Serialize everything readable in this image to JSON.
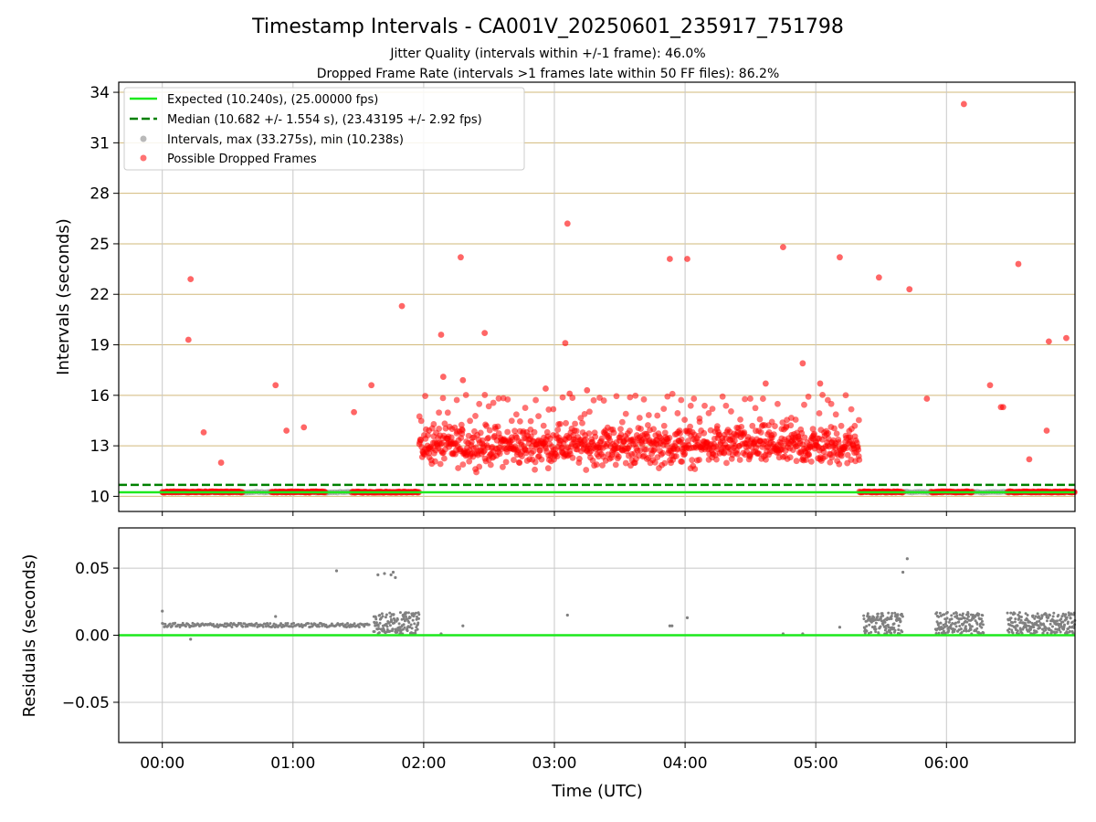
{
  "figure": {
    "title": "Timestamp Intervals - CA001V_20250601_235917_751798",
    "subtitle_1": "Jitter Quality (intervals within +/-1 frame): 46.0%",
    "subtitle_2": "Dropped Frame Rate (intervals >1 frames late within 50 FF files): 86.2%"
  },
  "colors": {
    "expected": "#1de91d",
    "median": "#008000",
    "intervals": "#808080",
    "dropped": "#ff0000",
    "hgrid_top": "#d2b97a",
    "grid": "#c8c8c8"
  },
  "chart_data": [
    {
      "type": "scatter",
      "panel": "intervals",
      "ylabel": "Intervals (seconds)",
      "ylim": [
        9.1,
        34.6
      ],
      "yticks": [
        10,
        13,
        16,
        19,
        22,
        25,
        28,
        31,
        34
      ],
      "ytick_labels": [
        "10",
        "13",
        "16",
        "19",
        "22",
        "25",
        "28",
        "31",
        "34"
      ],
      "xlim": [
        "-00:20",
        "06:59"
      ],
      "xticks": [
        "00:00",
        "01:00",
        "02:00",
        "03:00",
        "04:00",
        "05:00",
        "06:00"
      ],
      "grid": true,
      "legend_position": "upper-left",
      "legend": [
        "Expected (10.240s), (25.00000 fps)",
        "Median (10.682 +/- 1.554 s), (23.43195 +/- 2.92 fps)",
        "Intervals, max (33.275s), min (10.238s)",
        "Possible Dropped Frames"
      ],
      "expected_interval": 10.24,
      "median_interval": 10.682,
      "intervals_baseline": [
        {
          "x_from": "00:00",
          "x_to": "01:35",
          "y": 10.25
        },
        {
          "x_from": "05:25",
          "x_to": "06:59",
          "y": 10.25
        }
      ],
      "dropped_clusters": [
        {
          "x_from": "00:00",
          "x_to": "00:37",
          "y": 10.26
        },
        {
          "x_from": "00:50",
          "x_to": "01:15",
          "y": 10.26
        },
        {
          "x_from": "01:27",
          "x_to": "01:58",
          "y": 10.25
        },
        {
          "x_from": "01:58",
          "x_to": "05:20",
          "y_center": 13.0,
          "y_spread": 0.55
        },
        {
          "x_from": "05:20",
          "x_to": "05:40",
          "y": 10.26
        },
        {
          "x_from": "05:53",
          "x_to": "06:12",
          "y": 10.26
        },
        {
          "x_from": "06:28",
          "x_to": "06:59",
          "y": 10.26
        }
      ],
      "dropped_outliers": [
        {
          "x": "00:12",
          "y": 19.3
        },
        {
          "x": "00:13",
          "y": 22.9
        },
        {
          "x": "00:19",
          "y": 13.8
        },
        {
          "x": "00:27",
          "y": 12.0
        },
        {
          "x": "00:52",
          "y": 16.6
        },
        {
          "x": "00:57",
          "y": 13.9
        },
        {
          "x": "01:05",
          "y": 14.1
        },
        {
          "x": "01:28",
          "y": 15.0
        },
        {
          "x": "01:36",
          "y": 16.6
        },
        {
          "x": "01:50",
          "y": 21.3
        },
        {
          "x": "02:08",
          "y": 19.6
        },
        {
          "x": "02:09",
          "y": 17.1
        },
        {
          "x": "02:17",
          "y": 24.2
        },
        {
          "x": "02:18",
          "y": 16.9
        },
        {
          "x": "02:28",
          "y": 19.7
        },
        {
          "x": "02:56",
          "y": 16.4
        },
        {
          "x": "03:05",
          "y": 19.1
        },
        {
          "x": "03:06",
          "y": 26.2
        },
        {
          "x": "03:07",
          "y": 16.1
        },
        {
          "x": "03:15",
          "y": 16.3
        },
        {
          "x": "03:53",
          "y": 24.1
        },
        {
          "x": "04:01",
          "y": 24.1
        },
        {
          "x": "04:37",
          "y": 16.7
        },
        {
          "x": "04:45",
          "y": 24.8
        },
        {
          "x": "04:54",
          "y": 17.9
        },
        {
          "x": "05:02",
          "y": 16.7
        },
        {
          "x": "05:11",
          "y": 24.2
        },
        {
          "x": "05:29",
          "y": 23.0
        },
        {
          "x": "05:43",
          "y": 22.3
        },
        {
          "x": "05:51",
          "y": 15.8
        },
        {
          "x": "06:08",
          "y": 33.3
        },
        {
          "x": "06:20",
          "y": 16.6
        },
        {
          "x": "06:25",
          "y": 15.3
        },
        {
          "x": "06:26",
          "y": 15.3
        },
        {
          "x": "06:33",
          "y": 23.8
        },
        {
          "x": "06:38",
          "y": 12.2
        },
        {
          "x": "06:46",
          "y": 13.9
        },
        {
          "x": "06:47",
          "y": 19.2
        },
        {
          "x": "06:55",
          "y": 19.4
        }
      ]
    },
    {
      "type": "scatter",
      "panel": "residuals",
      "xlabel": "Time (UTC)",
      "ylabel": "Residuals (seconds)",
      "ylim": [
        -0.08,
        0.08
      ],
      "yticks": [
        -0.05,
        0.0,
        0.05
      ],
      "ytick_labels": [
        "−0.05",
        "0.00",
        "0.05"
      ],
      "xlim": [
        "-00:20",
        "06:59"
      ],
      "xticks": [
        "00:00",
        "01:00",
        "02:00",
        "03:00",
        "04:00",
        "05:00",
        "06:00"
      ],
      "xtick_labels": [
        "00:00",
        "01:00",
        "02:00",
        "03:00",
        "04:00",
        "05:00",
        "06:00"
      ],
      "grid": true,
      "zero_line": 0.0,
      "residual_clusters": [
        {
          "x_from": "00:00",
          "x_to": "01:35",
          "y_center": 0.0075,
          "y_spread": 0.0015
        },
        {
          "x_from": "01:37",
          "x_to": "01:58",
          "y_center": 0.009,
          "y_spread": 0.008
        },
        {
          "x_from": "05:22",
          "x_to": "05:40",
          "y_center": 0.009,
          "y_spread": 0.008
        },
        {
          "x_from": "05:55",
          "x_to": "06:17",
          "y_center": 0.009,
          "y_spread": 0.008
        },
        {
          "x_from": "06:28",
          "x_to": "06:59",
          "y_center": 0.009,
          "y_spread": 0.008
        }
      ],
      "residual_outliers": [
        {
          "x": "00:00",
          "y": 0.018
        },
        {
          "x": "00:13",
          "y": -0.003
        },
        {
          "x": "00:52",
          "y": 0.014
        },
        {
          "x": "01:20",
          "y": 0.048
        },
        {
          "x": "01:39",
          "y": 0.045
        },
        {
          "x": "01:42",
          "y": 0.046
        },
        {
          "x": "01:45",
          "y": 0.045
        },
        {
          "x": "01:46",
          "y": 0.047
        },
        {
          "x": "01:47",
          "y": 0.043
        },
        {
          "x": "02:08",
          "y": 0.001
        },
        {
          "x": "02:18",
          "y": 0.007
        },
        {
          "x": "03:06",
          "y": 0.015
        },
        {
          "x": "03:53",
          "y": 0.007
        },
        {
          "x": "03:54",
          "y": 0.007
        },
        {
          "x": "04:01",
          "y": 0.013
        },
        {
          "x": "04:45",
          "y": 0.001
        },
        {
          "x": "04:54",
          "y": 0.001
        },
        {
          "x": "05:11",
          "y": 0.006
        },
        {
          "x": "05:40",
          "y": 0.047
        },
        {
          "x": "05:42",
          "y": 0.057
        }
      ]
    }
  ]
}
